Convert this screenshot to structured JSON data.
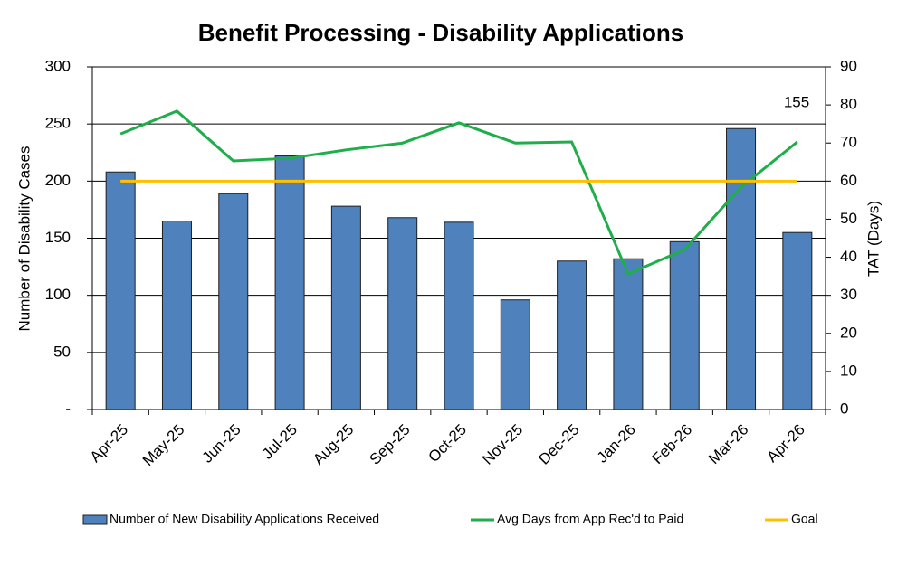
{
  "chart_data": {
    "type": "bar",
    "title": "Benefit Processing - Disability Applications",
    "y_label": "Number of Disability Cases",
    "y2_label": "TAT (Days)",
    "annotation": "155",
    "categories": [
      "Apr-25",
      "May-25",
      "Jun-25",
      "Jul-25",
      "Aug-25",
      "Sep-25",
      "Oct-25",
      "Nov-25",
      "Dec-25",
      "Jan-26",
      "Feb-26",
      "Mar-26",
      "Apr-26"
    ],
    "series": [
      {
        "name": "Number of New Disability Applications Received",
        "type": "bar",
        "axis": "y",
        "color": "#4f81bd",
        "values": [
          208,
          165,
          189,
          222,
          178,
          168,
          164,
          96,
          130,
          132,
          147,
          246,
          155
        ]
      },
      {
        "name": "Avg Days from App Rec'd to Paid",
        "type": "line",
        "axis": "y2",
        "color": "#1fae4a",
        "values": [
          72.4,
          78.4,
          65.3,
          66,
          68.2,
          70,
          75.3,
          70,
          70.3,
          35.6,
          42,
          58.4,
          70.3
        ]
      },
      {
        "name": "Goal",
        "type": "line",
        "axis": "y2",
        "color": "#ffc000",
        "values": [
          60,
          60,
          60,
          60,
          60,
          60,
          60,
          60,
          60,
          60,
          60,
          60,
          60
        ]
      }
    ],
    "ylim": [
      0,
      300
    ],
    "yticks": [
      {
        "value": 0,
        "label": "-"
      },
      50,
      100,
      150,
      200,
      250,
      300
    ],
    "y2lim": [
      0,
      90
    ],
    "y2ticks": [
      0,
      10,
      20,
      30,
      40,
      50,
      60,
      70,
      80,
      90
    ],
    "grid": true,
    "legend": "bottom"
  }
}
